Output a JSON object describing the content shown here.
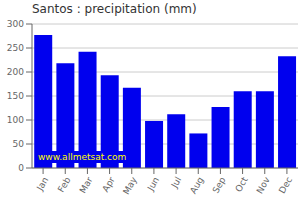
{
  "chart_data": {
    "type": "bar",
    "title": "Santos : precipitation (mm)",
    "categories": [
      "Jan",
      "Feb",
      "Mar",
      "Apr",
      "May",
      "Jun",
      "Jul",
      "Aug",
      "Sep",
      "Oct",
      "Nov",
      "Dec"
    ],
    "values": [
      277,
      218,
      242,
      193,
      167,
      98,
      112,
      72,
      127,
      160,
      160,
      233
    ],
    "color": "#0000ee",
    "ylim": [
      0,
      300
    ],
    "yticks": [
      0,
      50,
      100,
      150,
      200,
      250,
      300
    ],
    "grid": true,
    "annotations": [
      "www.allmetsat.com"
    ]
  }
}
